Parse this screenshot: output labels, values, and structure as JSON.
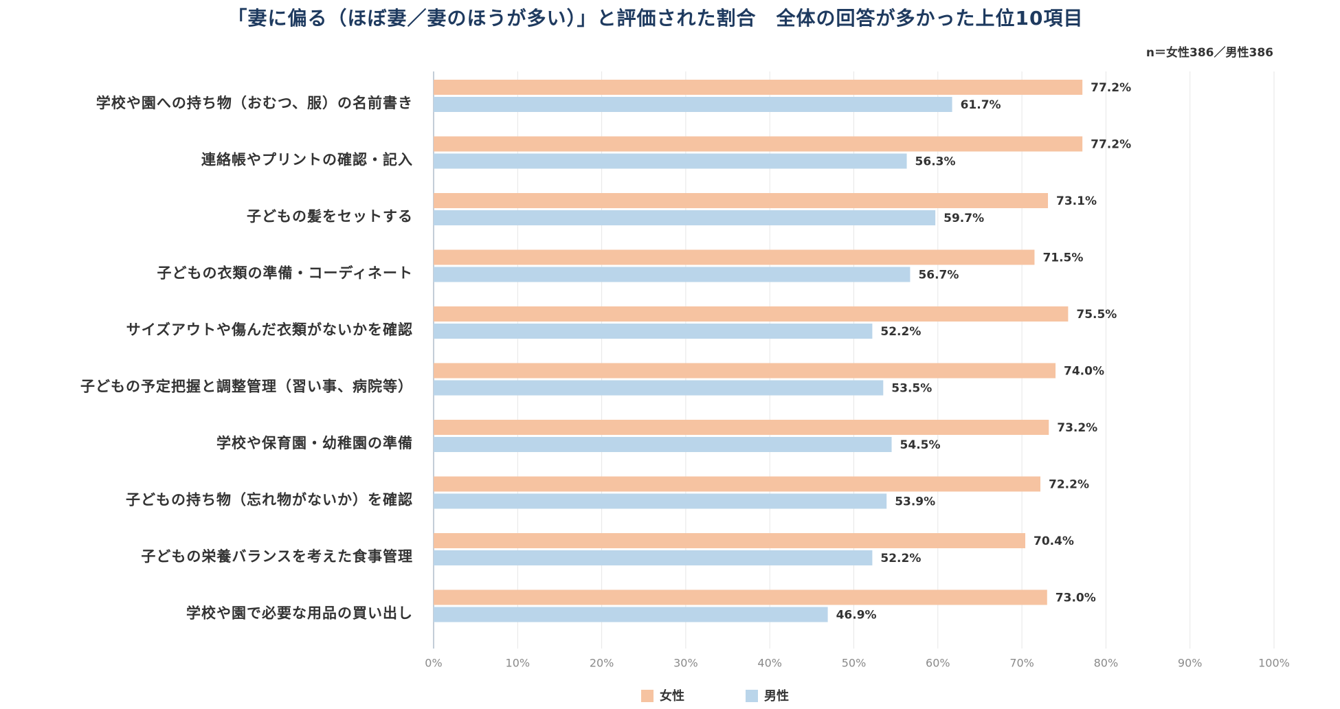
{
  "colors": {
    "title": "#1E3A5F",
    "grid": "#E6E6E6",
    "axis": "#C3CDD8"
  },
  "chart_data": {
    "type": "bar",
    "orientation": "horizontal",
    "title": "「妻に偏る（ほぼ妻／妻のほうが多い）」と評価された割合　全体の回答が多かった上位10項目",
    "note": "n＝女性386／男性386",
    "categories": [
      "学校や園への持ち物（おむつ、服）の名前書き",
      "連絡帳やプリントの確認・記入",
      "子どもの髪をセットする",
      "子どもの衣類の準備・コーディネート",
      "サイズアウトや傷んだ衣類がないかを確認",
      "子どもの予定把握と調整管理（習い事、病院等）",
      "学校や保育園・幼稚園の準備",
      "子どもの持ち物（忘れ物がないか）を確認",
      "子どもの栄養バランスを考えた食事管理",
      "学校や園で必要な用品の買い出し"
    ],
    "series": [
      {
        "name": "女性",
        "color": "#F6C3A1",
        "values": [
          77.2,
          77.2,
          73.1,
          71.5,
          75.5,
          74.0,
          73.2,
          72.2,
          70.4,
          73.0
        ]
      },
      {
        "name": "男性",
        "color": "#BAD5EA",
        "values": [
          61.7,
          56.3,
          59.7,
          56.7,
          52.2,
          53.5,
          54.5,
          53.9,
          52.2,
          46.9
        ]
      }
    ],
    "unit": "%",
    "xlim": [
      0,
      100
    ],
    "xticks": [
      0,
      10,
      20,
      30,
      40,
      50,
      60,
      70,
      80,
      90,
      100
    ],
    "xtick_labels": [
      "0%",
      "10%",
      "20%",
      "30%",
      "40%",
      "50%",
      "60%",
      "70%",
      "80%",
      "90%",
      "100%"
    ],
    "grid": true,
    "legend_position": "bottom"
  }
}
